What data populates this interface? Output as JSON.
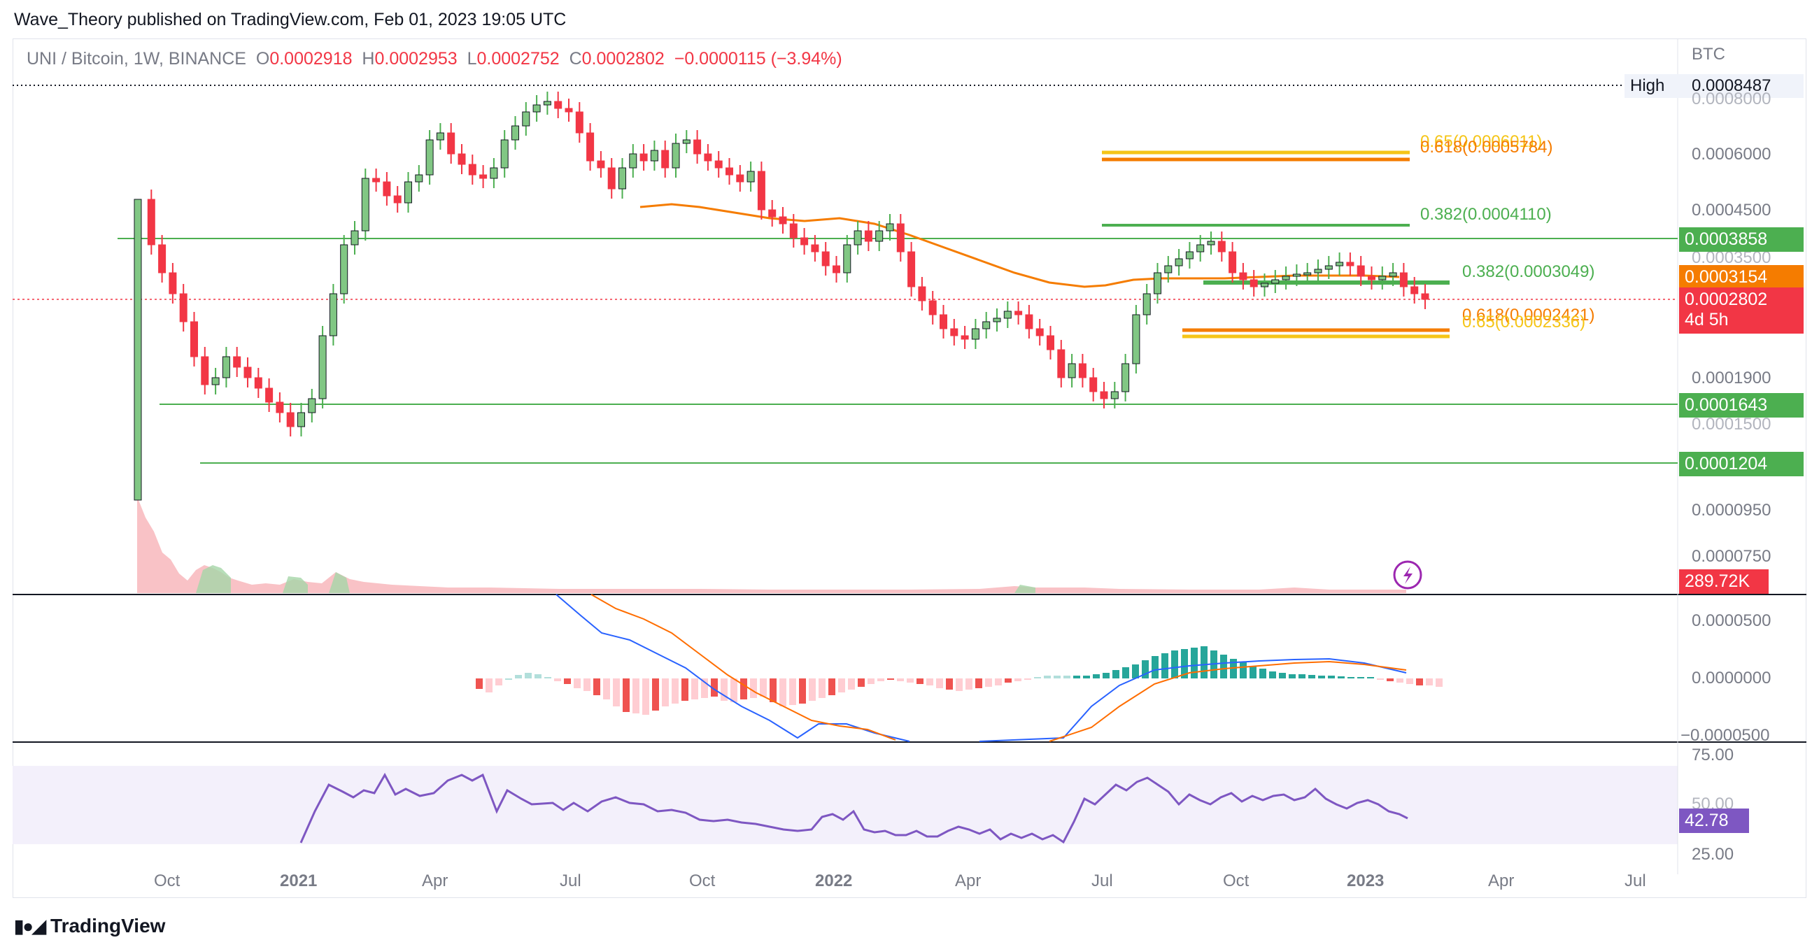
{
  "publisher_line": "Wave_Theory published on TradingView.com, Feb 01, 2023 19:05 UTC",
  "legend": {
    "symbol": "UNI / Bitcoin, 1W, BINANCE",
    "o_label": "O",
    "o": "0.0002918",
    "h_label": "H",
    "h": "0.0002953",
    "l_label": "L",
    "l": "0.0002752",
    "c_label": "C",
    "c": "0.0002802",
    "change": "−0.0000115 (−3.94%)"
  },
  "currency": "BTC",
  "high_tag": {
    "label": "High",
    "value": "0.0008487"
  },
  "price_axis_labels": [
    "0.0008000",
    "0.0006000",
    "0.0004500",
    "0.0003500",
    "0.0001900",
    "0.0001500",
    "0.0000950",
    "0.0000750"
  ],
  "price_tags": [
    {
      "name": "resistance-level-tag",
      "value": "0.0003858",
      "color": "#4caf50"
    },
    {
      "name": "ema-tag",
      "value": "0.0003154",
      "color": "#f57c00"
    },
    {
      "name": "last-price-tag",
      "value": "0.0002802",
      "sub": "4d 5h",
      "color": "#f23645"
    },
    {
      "name": "support-level-1-tag",
      "value": "0.0001643",
      "color": "#4caf50"
    },
    {
      "name": "support-level-2-tag",
      "value": "0.0001204",
      "color": "#4caf50"
    }
  ],
  "volume_tag": "289.72K",
  "fib_labels": {
    "top_065": "0.65(0.0006011)",
    "top_0618": "0.618(0.0005784)",
    "upper_0382": "0.382(0.0004110)",
    "mid_0382": "0.382(0.0003049)",
    "low_0618": "0.618(0.0002421)",
    "low_065": "0.65(0.0002336)"
  },
  "macd_axis": [
    "0.0000500",
    "0.0000000",
    "−0.0000500"
  ],
  "rsi_axis": [
    "75.00",
    "50.00",
    "25.00"
  ],
  "rsi_tag": "42.78",
  "time_axis": [
    "Oct",
    "2021",
    "Apr",
    "Jul",
    "Oct",
    "2022",
    "Apr",
    "Jul",
    "Oct",
    "2023",
    "Apr",
    "Jul"
  ],
  "footer_logo": "TradingView",
  "colors": {
    "up": "#4caf50",
    "down": "#f23645",
    "ema": "#f57c00",
    "fib": "#f5c518",
    "macd": "#2962ff",
    "signal": "#ff6d00",
    "rsi": "#7e57c2"
  }
}
